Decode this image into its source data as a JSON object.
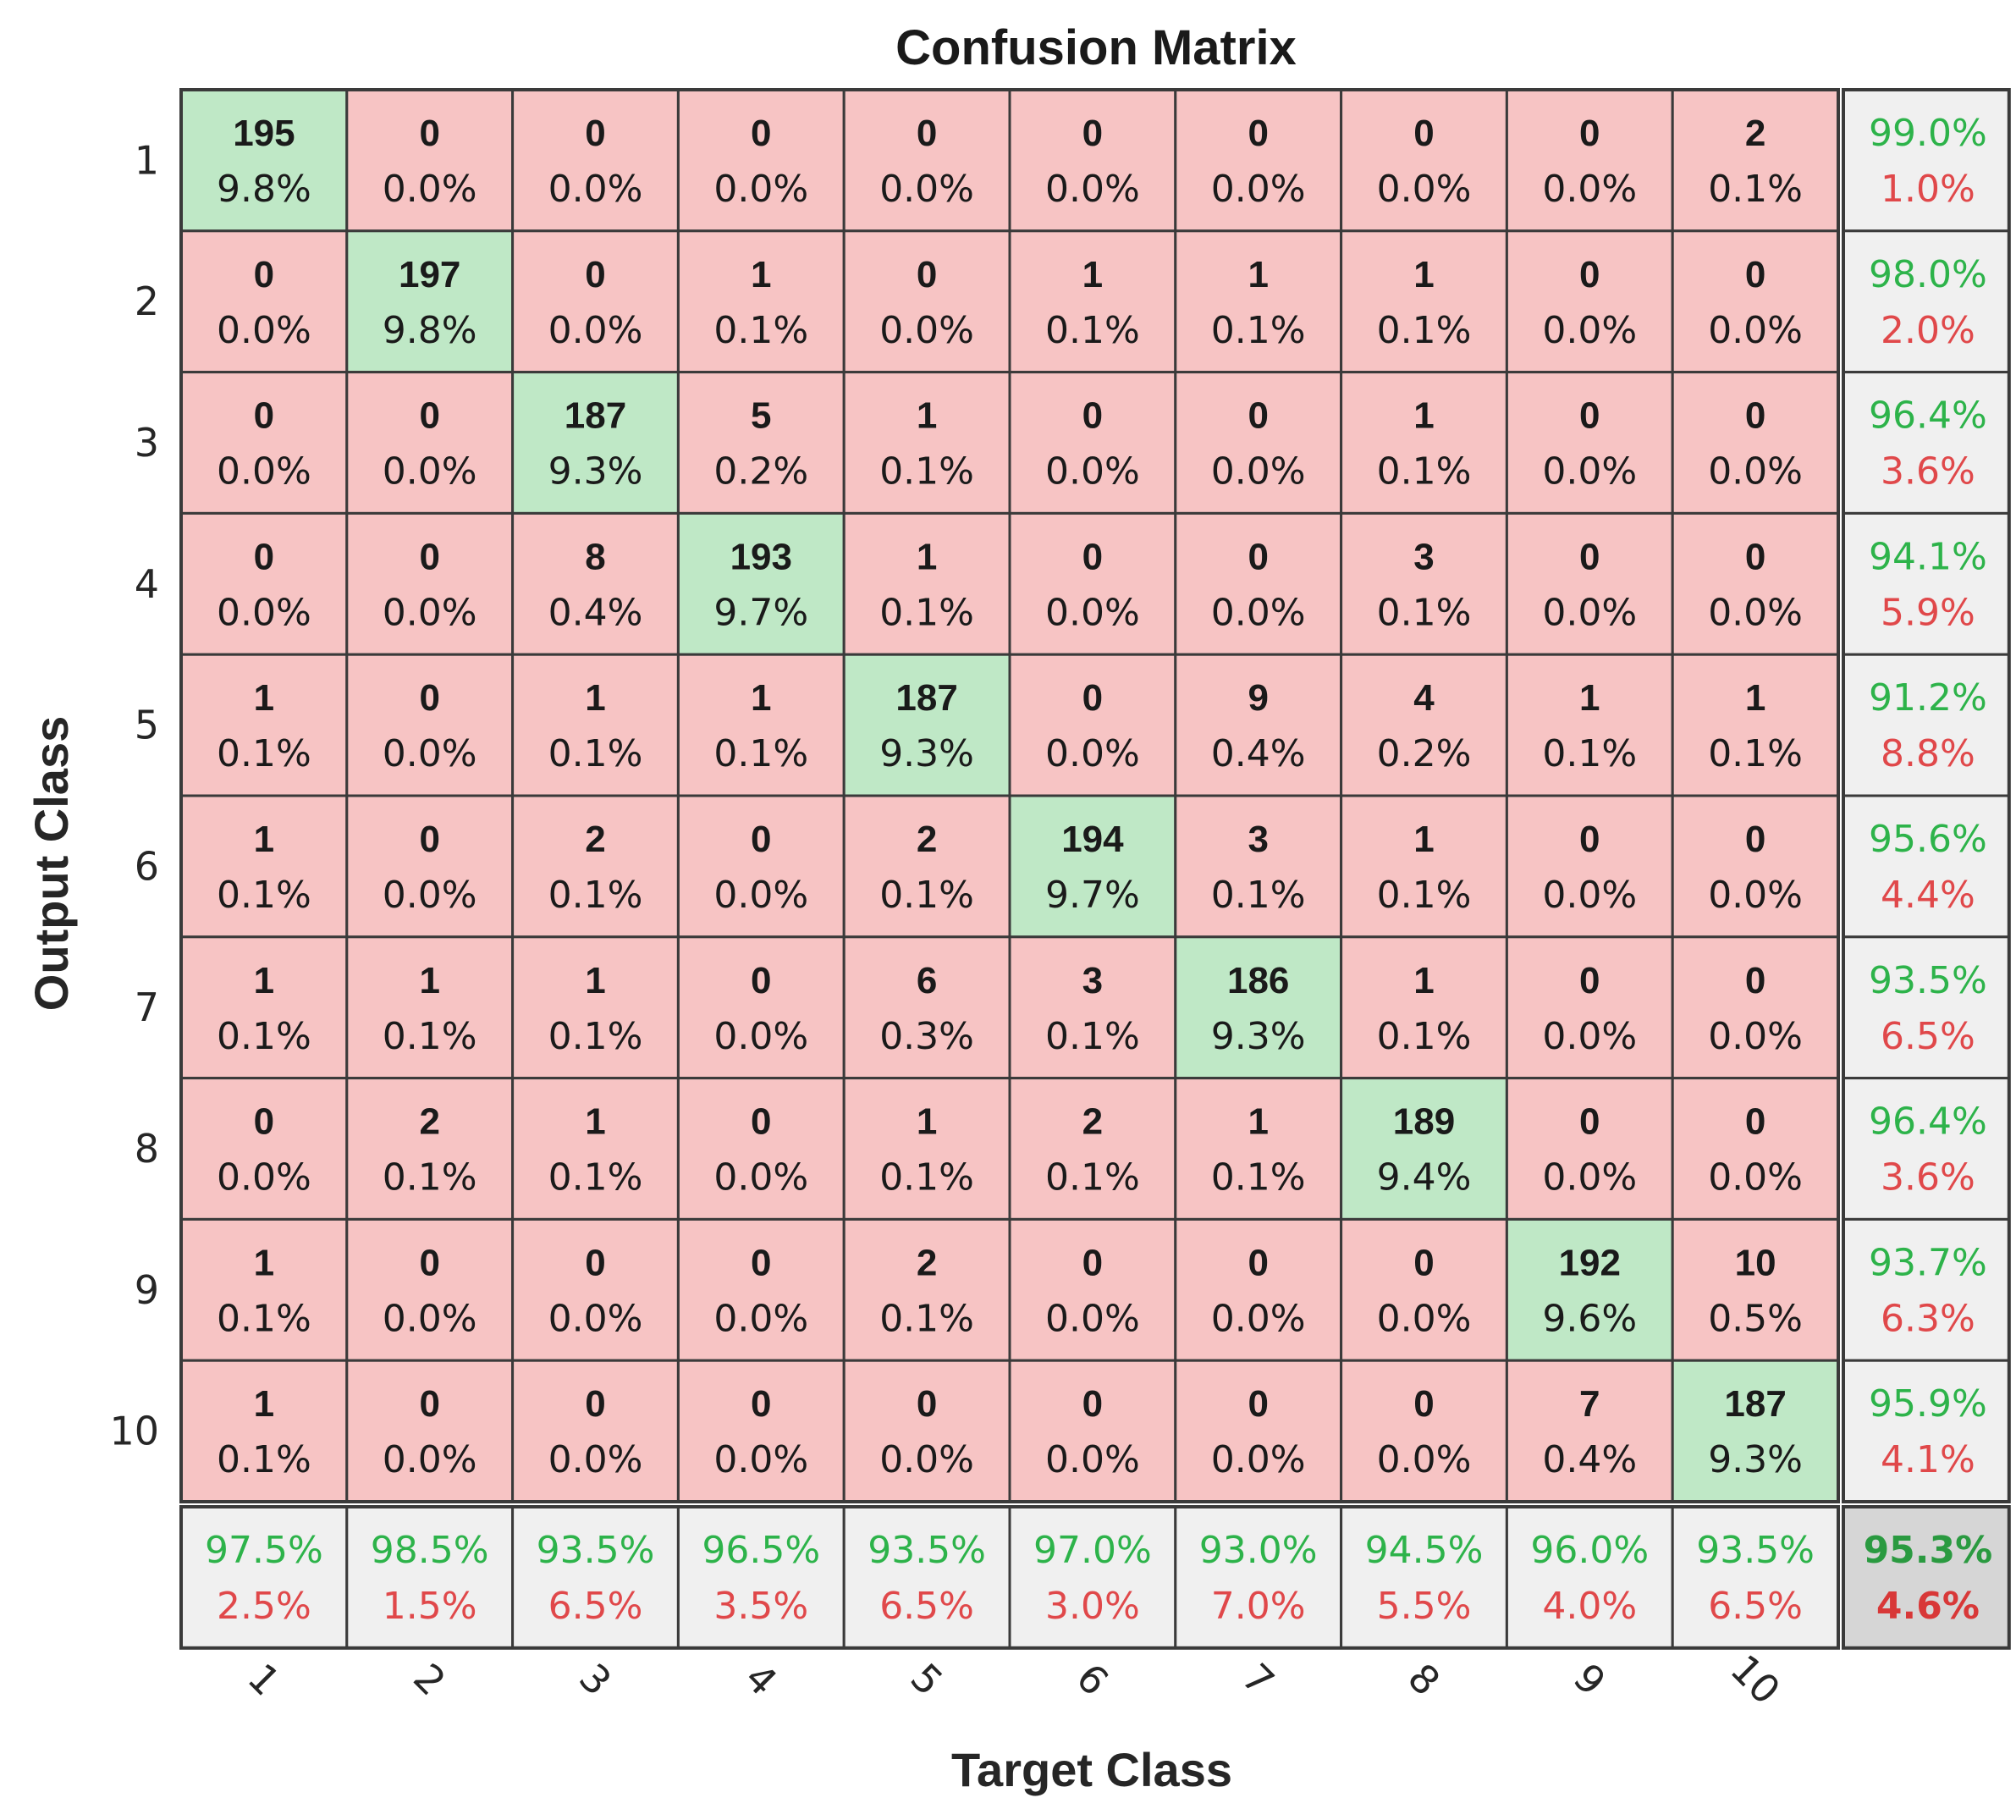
{
  "chart_data": {
    "type": "heatmap",
    "title": "Confusion Matrix",
    "xlabel": "Target Class",
    "ylabel": "Output Class",
    "x_tick_labels": [
      "1",
      "2",
      "3",
      "4",
      "5",
      "6",
      "7",
      "8",
      "9",
      "10"
    ],
    "y_tick_labels": [
      "1",
      "2",
      "3",
      "4",
      "5",
      "6",
      "7",
      "8",
      "9",
      "10"
    ],
    "counts": [
      [
        195,
        0,
        0,
        0,
        0,
        0,
        0,
        0,
        0,
        2
      ],
      [
        0,
        197,
        0,
        1,
        0,
        1,
        1,
        1,
        0,
        0
      ],
      [
        0,
        0,
        187,
        5,
        1,
        0,
        0,
        1,
        0,
        0
      ],
      [
        0,
        0,
        8,
        193,
        1,
        0,
        0,
        3,
        0,
        0
      ],
      [
        1,
        0,
        1,
        1,
        187,
        0,
        9,
        4,
        1,
        1
      ],
      [
        1,
        0,
        2,
        0,
        2,
        194,
        3,
        1,
        0,
        0
      ],
      [
        1,
        1,
        1,
        0,
        6,
        3,
        186,
        1,
        0,
        0
      ],
      [
        0,
        2,
        1,
        0,
        1,
        2,
        1,
        189,
        0,
        0
      ],
      [
        1,
        0,
        0,
        0,
        2,
        0,
        0,
        0,
        192,
        10
      ],
      [
        1,
        0,
        0,
        0,
        0,
        0,
        0,
        0,
        7,
        187
      ]
    ],
    "percents": [
      [
        "9.8%",
        "0.0%",
        "0.0%",
        "0.0%",
        "0.0%",
        "0.0%",
        "0.0%",
        "0.0%",
        "0.0%",
        "0.1%"
      ],
      [
        "0.0%",
        "9.8%",
        "0.0%",
        "0.1%",
        "0.0%",
        "0.1%",
        "0.1%",
        "0.1%",
        "0.0%",
        "0.0%"
      ],
      [
        "0.0%",
        "0.0%",
        "9.3%",
        "0.2%",
        "0.1%",
        "0.0%",
        "0.0%",
        "0.1%",
        "0.0%",
        "0.0%"
      ],
      [
        "0.0%",
        "0.0%",
        "0.4%",
        "9.7%",
        "0.1%",
        "0.0%",
        "0.0%",
        "0.1%",
        "0.0%",
        "0.0%"
      ],
      [
        "0.1%",
        "0.0%",
        "0.1%",
        "0.1%",
        "9.3%",
        "0.0%",
        "0.4%",
        "0.2%",
        "0.1%",
        "0.1%"
      ],
      [
        "0.1%",
        "0.0%",
        "0.1%",
        "0.0%",
        "0.1%",
        "9.7%",
        "0.1%",
        "0.1%",
        "0.0%",
        "0.0%"
      ],
      [
        "0.1%",
        "0.1%",
        "0.1%",
        "0.0%",
        "0.3%",
        "0.1%",
        "9.3%",
        "0.1%",
        "0.0%",
        "0.0%"
      ],
      [
        "0.0%",
        "0.1%",
        "0.1%",
        "0.0%",
        "0.1%",
        "0.1%",
        "0.1%",
        "9.4%",
        "0.0%",
        "0.0%"
      ],
      [
        "0.1%",
        "0.0%",
        "0.0%",
        "0.0%",
        "0.1%",
        "0.0%",
        "0.0%",
        "0.0%",
        "9.6%",
        "0.5%"
      ],
      [
        "0.1%",
        "0.0%",
        "0.0%",
        "0.0%",
        "0.0%",
        "0.0%",
        "0.0%",
        "0.0%",
        "0.4%",
        "9.3%"
      ]
    ],
    "row_summary": [
      [
        "99.0%",
        "1.0%"
      ],
      [
        "98.0%",
        "2.0%"
      ],
      [
        "96.4%",
        "3.6%"
      ],
      [
        "94.1%",
        "5.9%"
      ],
      [
        "91.2%",
        "8.8%"
      ],
      [
        "95.6%",
        "4.4%"
      ],
      [
        "93.5%",
        "6.5%"
      ],
      [
        "96.4%",
        "3.6%"
      ],
      [
        "93.7%",
        "6.3%"
      ],
      [
        "95.9%",
        "4.1%"
      ]
    ],
    "column_summary": [
      [
        "97.5%",
        "2.5%"
      ],
      [
        "98.5%",
        "1.5%"
      ],
      [
        "93.5%",
        "6.5%"
      ],
      [
        "96.5%",
        "3.5%"
      ],
      [
        "93.5%",
        "6.5%"
      ],
      [
        "97.0%",
        "3.0%"
      ],
      [
        "93.0%",
        "7.0%"
      ],
      [
        "94.5%",
        "5.5%"
      ],
      [
        "96.0%",
        "4.0%"
      ],
      [
        "93.5%",
        "6.5%"
      ]
    ],
    "overall": [
      "95.3%",
      "4.6%"
    ],
    "colors": {
      "correct_cell": "#bfe8c6",
      "incorrect_cell": "#f7c4c4",
      "summary_cell": "#f0f0f0",
      "overall_cell": "#d6d6d6",
      "good_text": "#2db34a",
      "bad_text": "#e0484a",
      "grid": "#3a3a3a"
    },
    "grid": true
  }
}
